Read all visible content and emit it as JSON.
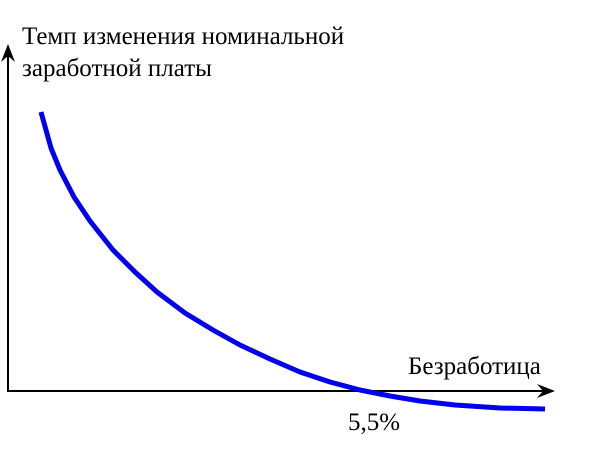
{
  "y_axis_label": [
    "Темп изменения номинальной",
    "заработной платы"
  ],
  "x_axis_label": "Безработица",
  "x_marker_label": "5,5%"
}
